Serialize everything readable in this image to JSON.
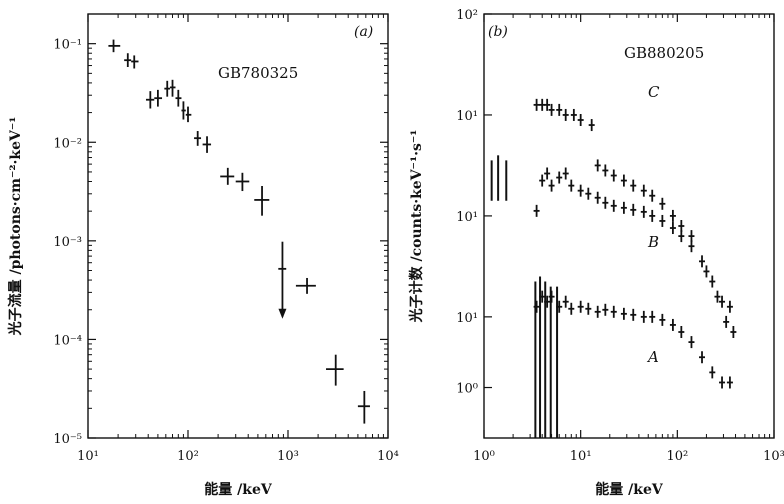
{
  "chart_data": [
    {
      "type": "scatter",
      "panel_label": "(a)",
      "annotation": "GB780325",
      "xlabel": "能量 /keV",
      "ylabel": "光子流量 /photons·cm⁻²·keV⁻¹",
      "xscale": "log",
      "yscale": "log",
      "xlim": [
        10,
        10000
      ],
      "ylim": [
        1e-05,
        0.2
      ],
      "x_ticks": [
        {
          "value": 10,
          "label": "10¹"
        },
        {
          "value": 100,
          "label": "10²"
        },
        {
          "value": 1000,
          "label": "10³"
        },
        {
          "value": 10000,
          "label": "10⁴"
        }
      ],
      "y_ticks": [
        {
          "value": 0.1,
          "label": "10⁻¹"
        },
        {
          "value": 0.01,
          "label": "10⁻²"
        },
        {
          "value": 0.001,
          "label": "10⁻³"
        },
        {
          "value": 0.0001,
          "label": "10⁻⁴"
        },
        {
          "value": 1e-05,
          "label": "10⁻⁵"
        }
      ],
      "points": [
        {
          "x": 18,
          "y": 0.095,
          "xerr": [
            16,
            21
          ],
          "yerr": [
            0.082,
            0.11
          ]
        },
        {
          "x": 25,
          "y": 0.068,
          "xerr": [
            23,
            27
          ],
          "yerr": [
            0.058,
            0.08
          ]
        },
        {
          "x": 29,
          "y": 0.066,
          "xerr": [
            27,
            32
          ],
          "yerr": [
            0.056,
            0.076
          ]
        },
        {
          "x": 42,
          "y": 0.027,
          "xerr": [
            38,
            46
          ],
          "yerr": [
            0.022,
            0.033
          ]
        },
        {
          "x": 50,
          "y": 0.028,
          "xerr": [
            46,
            55
          ],
          "yerr": [
            0.023,
            0.034
          ]
        },
        {
          "x": 62,
          "y": 0.035,
          "xerr": [
            58,
            66
          ],
          "yerr": [
            0.029,
            0.042
          ]
        },
        {
          "x": 70,
          "y": 0.036,
          "xerr": [
            66,
            75
          ],
          "yerr": [
            0.029,
            0.043
          ]
        },
        {
          "x": 80,
          "y": 0.028,
          "xerr": [
            75,
            86
          ],
          "yerr": [
            0.023,
            0.034
          ]
        },
        {
          "x": 90,
          "y": 0.021,
          "xerr": [
            86,
            95
          ],
          "yerr": [
            0.017,
            0.026
          ]
        },
        {
          "x": 100,
          "y": 0.019,
          "xerr": [
            95,
            108
          ],
          "yerr": [
            0.016,
            0.023
          ]
        },
        {
          "x": 125,
          "y": 0.011,
          "xerr": [
            115,
            135
          ],
          "yerr": [
            0.0092,
            0.013
          ]
        },
        {
          "x": 155,
          "y": 0.0095,
          "xerr": [
            140,
            170
          ],
          "yerr": [
            0.0078,
            0.0115
          ]
        },
        {
          "x": 250,
          "y": 0.0045,
          "xerr": [
            210,
            290
          ],
          "yerr": [
            0.0037,
            0.0055
          ]
        },
        {
          "x": 350,
          "y": 0.004,
          "xerr": [
            300,
            410
          ],
          "yerr": [
            0.0032,
            0.0049
          ]
        },
        {
          "x": 550,
          "y": 0.0026,
          "xerr": [
            460,
            650
          ],
          "yerr": [
            0.0018,
            0.0036
          ]
        },
        {
          "x": 880,
          "y": 0.00052,
          "xerr": [
            800,
            960
          ],
          "yerr": [
            0.00017,
            0.00098
          ],
          "upper_limit": true
        },
        {
          "x": 1550,
          "y": 0.00035,
          "xerr": [
            1200,
            1900
          ],
          "yerr": [
            0.00029,
            0.00042
          ]
        },
        {
          "x": 3000,
          "y": 5e-05,
          "xerr": [
            2400,
            3600
          ],
          "yerr": [
            3.4e-05,
            7e-05
          ]
        },
        {
          "x": 5800,
          "y": 2.1e-05,
          "xerr": [
            5000,
            6600
          ],
          "yerr": [
            1.4e-05,
            3e-05
          ]
        }
      ]
    },
    {
      "type": "scatter",
      "panel_label": "(b)",
      "annotation": "GB880205",
      "xlabel": "能量 /keV",
      "ylabel": "光子计数 /counts·keV⁻¹·s⁻¹",
      "xscale": "log",
      "xlim": [
        1,
        1000
      ],
      "x_ticks": [
        {
          "value": 1,
          "label": "10⁰"
        },
        {
          "value": 10,
          "label": "10¹"
        },
        {
          "value": 100,
          "label": "10²"
        },
        {
          "value": 1000,
          "label": "10³"
        }
      ],
      "y_tick_labels": [
        "10²",
        "10¹",
        "10¹",
        "10¹",
        "10⁰"
      ],
      "y_axis_note": "stacked spectra, each offset by a decade",
      "series": [
        {
          "name": "C",
          "points": [
            {
              "x": 3.5,
              "y": 3.3
            },
            {
              "x": 4,
              "y": 3.3
            },
            {
              "x": 4.5,
              "y": 3.3
            },
            {
              "x": 5,
              "y": 3.25
            },
            {
              "x": 6,
              "y": 3.25
            },
            {
              "x": 7,
              "y": 3.2
            },
            {
              "x": 8.5,
              "y": 3.2
            },
            {
              "x": 10,
              "y": 3.15
            },
            {
              "x": 13,
              "y": 3.1
            },
            {
              "x": 15,
              "y": 2.7
            },
            {
              "x": 18,
              "y": 2.65
            },
            {
              "x": 22,
              "y": 2.6
            },
            {
              "x": 28,
              "y": 2.55
            },
            {
              "x": 35,
              "y": 2.5
            },
            {
              "x": 45,
              "y": 2.45
            },
            {
              "x": 55,
              "y": 2.4
            },
            {
              "x": 70,
              "y": 2.32
            },
            {
              "x": 90,
              "y": 2.2
            },
            {
              "x": 110,
              "y": 2.1
            },
            {
              "x": 140,
              "y": 2.0
            },
            {
              "x": 200,
              "y": 1.65
            },
            {
              "x": 260,
              "y": 1.4
            },
            {
              "x": 320,
              "y": 1.15
            },
            {
              "x": 380,
              "y": 1.05
            }
          ]
        },
        {
          "name": "B",
          "points": [
            {
              "x": 3.5,
              "y": 2.25
            },
            {
              "x": 4,
              "y": 2.55
            },
            {
              "x": 4.5,
              "y": 2.62
            },
            {
              "x": 5,
              "y": 2.5
            },
            {
              "x": 6,
              "y": 2.58
            },
            {
              "x": 7,
              "y": 2.62
            },
            {
              "x": 8,
              "y": 2.5
            },
            {
              "x": 10,
              "y": 2.45
            },
            {
              "x": 12,
              "y": 2.42
            },
            {
              "x": 15,
              "y": 2.38
            },
            {
              "x": 18,
              "y": 2.33
            },
            {
              "x": 22,
              "y": 2.3
            },
            {
              "x": 28,
              "y": 2.28
            },
            {
              "x": 35,
              "y": 2.26
            },
            {
              "x": 45,
              "y": 2.24
            },
            {
              "x": 55,
              "y": 2.2
            },
            {
              "x": 70,
              "y": 2.15
            },
            {
              "x": 90,
              "y": 2.08
            },
            {
              "x": 110,
              "y": 2.0
            },
            {
              "x": 140,
              "y": 1.9
            },
            {
              "x": 180,
              "y": 1.75
            },
            {
              "x": 230,
              "y": 1.55
            },
            {
              "x": 290,
              "y": 1.35
            },
            {
              "x": 350,
              "y": 1.3
            }
          ]
        },
        {
          "name": "A",
          "points": [
            {
              "x": 3.5,
              "y": 1.3
            },
            {
              "x": 4,
              "y": 1.4
            },
            {
              "x": 4.5,
              "y": 1.35
            },
            {
              "x": 5,
              "y": 1.4
            },
            {
              "x": 6,
              "y": 1.3
            },
            {
              "x": 7,
              "y": 1.35
            },
            {
              "x": 8,
              "y": 1.28
            },
            {
              "x": 10,
              "y": 1.3
            },
            {
              "x": 12,
              "y": 1.28
            },
            {
              "x": 15,
              "y": 1.25
            },
            {
              "x": 18,
              "y": 1.27
            },
            {
              "x": 22,
              "y": 1.25
            },
            {
              "x": 28,
              "y": 1.23
            },
            {
              "x": 35,
              "y": 1.22
            },
            {
              "x": 45,
              "y": 1.2
            },
            {
              "x": 55,
              "y": 1.2
            },
            {
              "x": 70,
              "y": 1.17
            },
            {
              "x": 90,
              "y": 1.12
            },
            {
              "x": 110,
              "y": 1.05
            },
            {
              "x": 140,
              "y": 0.95
            },
            {
              "x": 180,
              "y": 0.8
            },
            {
              "x": 230,
              "y": 0.65
            },
            {
              "x": 290,
              "y": 0.55
            },
            {
              "x": 350,
              "y": 0.55
            }
          ]
        }
      ],
      "low_energy_bars": [
        {
          "x": 1.2,
          "top": 2.75,
          "bottom": 2.35
        },
        {
          "x": 1.4,
          "top": 2.8,
          "bottom": 2.35
        },
        {
          "x": 1.7,
          "top": 2.75,
          "bottom": 2.35
        },
        {
          "x": 3.4,
          "top": 1.55,
          "bottom": 0
        },
        {
          "x": 3.8,
          "top": 1.6,
          "bottom": 0
        },
        {
          "x": 4.3,
          "top": 1.55,
          "bottom": 0
        },
        {
          "x": 4.9,
          "top": 1.5,
          "bottom": 0
        },
        {
          "x": 5.7,
          "top": 1.5,
          "bottom": 0
        }
      ]
    }
  ]
}
